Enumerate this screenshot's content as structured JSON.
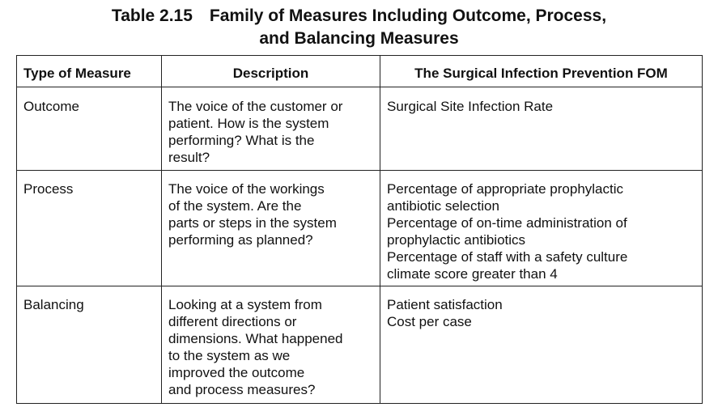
{
  "title": {
    "line1": "Table 2.15 Family of Measures Including Outcome, Process,",
    "line2": "and Balancing Measures"
  },
  "headers": {
    "type": "Type of Measure",
    "description": "Description",
    "fom": "The Surgical Infection Prevention FOM"
  },
  "rows": [
    {
      "type": "Outcome",
      "description": [
        "The voice of the customer or",
        "patient. How is the system",
        "performing? What is the",
        "result?"
      ],
      "fom": [
        "Surgical Site Infection Rate"
      ]
    },
    {
      "type": "Process",
      "description": [
        "The voice of the workings",
        "of the system. Are the",
        "parts or steps in the system",
        "performing as planned?"
      ],
      "fom": [
        "Percentage of appropriate prophylactic",
        "antibiotic selection",
        "Percentage of on-time administration of",
        "prophylactic antibiotics",
        "Percentage of staff with a safety culture",
        "climate score greater than 4"
      ]
    },
    {
      "type": "Balancing",
      "description": [
        "Looking at a system from",
        "different directions or",
        "dimensions. What happened",
        "to the system as we",
        "improved the outcome",
        "and process measures?"
      ],
      "fom": [
        "Patient satisfaction",
        "Cost per case"
      ]
    }
  ]
}
